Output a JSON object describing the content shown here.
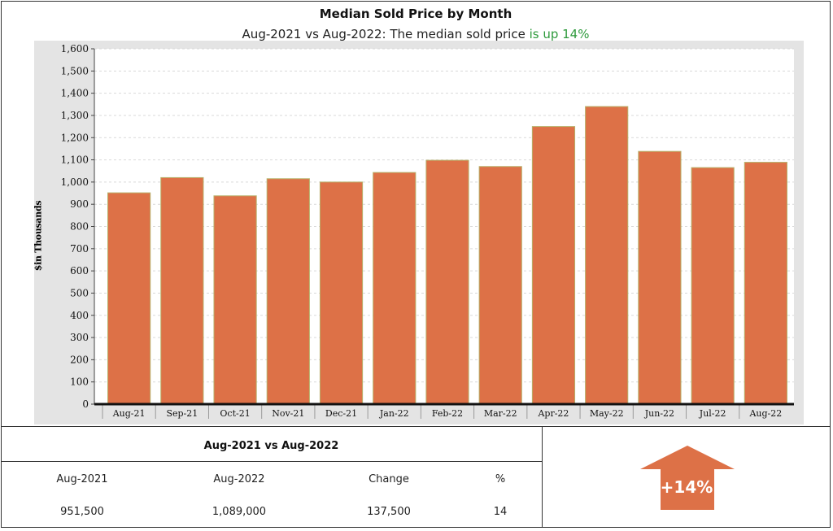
{
  "header": {
    "title": "Median Sold Price by Month",
    "subtitle_prefix": "Aug-2021 vs Aug-2022: The median sold price ",
    "subtitle_highlight": "is up 14%"
  },
  "colors": {
    "bar_fill": "#dd7147",
    "bar_edge": "#b7b06a",
    "plot_bg": "#ffffff",
    "outer_bg": "#e4e4e4",
    "highlight_text": "#2e9a3c",
    "arrow": "#dd7147"
  },
  "chart_data": {
    "type": "bar",
    "title": "Median Sold Price by Month",
    "ylabel": "$in Thousands",
    "categories": [
      "Aug-21",
      "Sep-21",
      "Oct-21",
      "Nov-21",
      "Dec-21",
      "Jan-22",
      "Feb-22",
      "Mar-22",
      "Apr-22",
      "May-22",
      "Jun-22",
      "Jul-22",
      "Aug-22"
    ],
    "values": [
      951.5,
      1020,
      938,
      1015,
      1000,
      1043,
      1098,
      1070,
      1250,
      1340,
      1138,
      1065,
      1089
    ],
    "ylim": [
      0,
      1600
    ],
    "yticks": [
      0,
      100,
      200,
      300,
      400,
      500,
      600,
      700,
      800,
      900,
      1000,
      1100,
      1200,
      1300,
      1400,
      1500,
      1600
    ],
    "ytick_labels": [
      "0",
      "100",
      "200",
      "300",
      "400",
      "500",
      "600",
      "700",
      "800",
      "900",
      "1,000",
      "1,100",
      "1,200",
      "1,300",
      "1,400",
      "1,500",
      "1,600"
    ],
    "grid": true
  },
  "summary": {
    "title": "Aug-2021 vs Aug-2022",
    "headers": [
      "Aug-2021",
      "Aug-2022",
      "Change",
      "%"
    ],
    "values": [
      "951,500",
      "1,089,000",
      "137,500",
      "14"
    ]
  },
  "indicator": {
    "label": "+14%",
    "icon": "arrow-up-icon"
  }
}
